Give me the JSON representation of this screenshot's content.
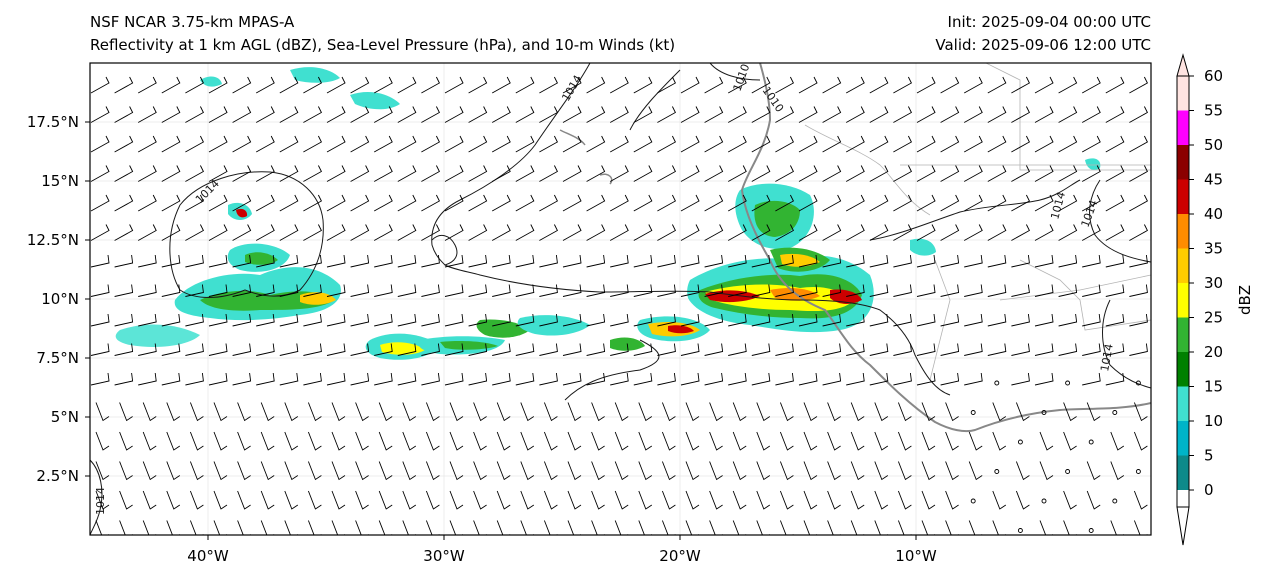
{
  "header": {
    "model": "NSF NCAR 3.75-km MPAS-A",
    "fields": "Reflectivity at 1 km AGL (dBZ), Sea-Level Pressure (hPa), and 10-m Winds (kt)",
    "init": "Init: 2025-09-04 00:00 UTC",
    "valid": "Valid: 2025-09-06 12:00 UTC"
  },
  "map": {
    "lon_range": [
      -45,
      0
    ],
    "lat_range": [
      0,
      20
    ],
    "lon_ticks": [
      "40°W",
      "30°W",
      "20°W",
      "10°W"
    ],
    "lat_ticks": [
      "2.5°N",
      "5°N",
      "7.5°N",
      "10°N",
      "12.5°N",
      "15°N",
      "17.5°N"
    ],
    "isobar_labels": [
      "1014",
      "1014",
      "1010",
      "1010",
      "1014",
      "1014",
      "1014",
      "1014"
    ],
    "gridlines": true
  },
  "colorbar": {
    "label": "dBZ",
    "ticks": [
      "0",
      "5",
      "10",
      "15",
      "20",
      "25",
      "30",
      "35",
      "40",
      "45",
      "50",
      "55",
      "60"
    ],
    "colors": [
      "#0d8a8a",
      "#00b4c8",
      "#40e0d0",
      "#008000",
      "#32b432",
      "#ffff00",
      "#ffcc00",
      "#ff8c00",
      "#cc0000",
      "#8b0000",
      "#ff00ff",
      "#ffe4e1"
    ]
  }
}
